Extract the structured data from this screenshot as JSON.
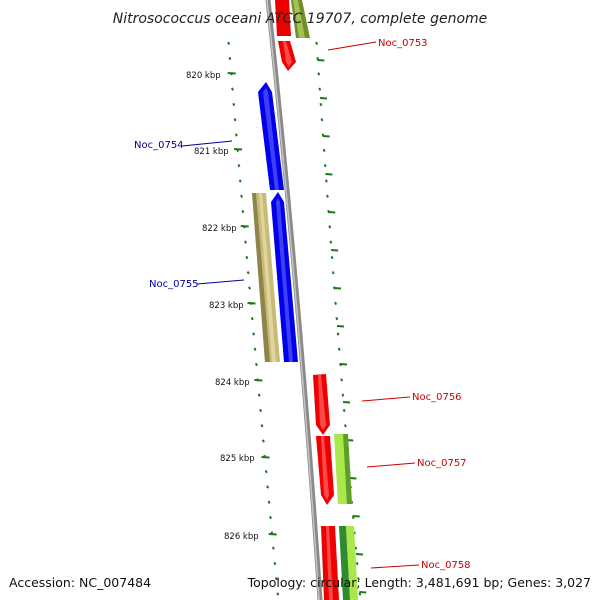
{
  "title": "Nitrosococcus oceani ATCC 19707, complete genome",
  "accession": "Accession: NC_007484",
  "topology": "Topology: circular; Length: 3,481,691 bp; Genes: 3,027",
  "ticks": [
    {
      "label": "820 kbp"
    },
    {
      "label": "821 kbp"
    },
    {
      "label": "822 kbp"
    },
    {
      "label": "823 kbp"
    },
    {
      "label": "824 kbp"
    },
    {
      "label": "825 kbp"
    },
    {
      "label": "826 kbp"
    }
  ],
  "genes": [
    {
      "id": "Noc_0753",
      "color": "#cc0000"
    },
    {
      "id": "Noc_0754",
      "color": "#000099"
    },
    {
      "id": "Noc_0755",
      "color": "#000099"
    },
    {
      "id": "Noc_0756",
      "color": "#cc0000"
    },
    {
      "id": "Noc_0757",
      "color": "#cc0000"
    },
    {
      "id": "Noc_0758",
      "color": "#cc0000"
    }
  ],
  "colors": {
    "backbone": "#8a8a8a",
    "tick": "#1a7a1a",
    "forward_red": "#ee0000",
    "reverse_blue": "#0000ee",
    "khaki": "#c8bb7a",
    "olive": "#6f8f2a",
    "lime": "#a8e84a",
    "green": "#2e8b2e"
  }
}
